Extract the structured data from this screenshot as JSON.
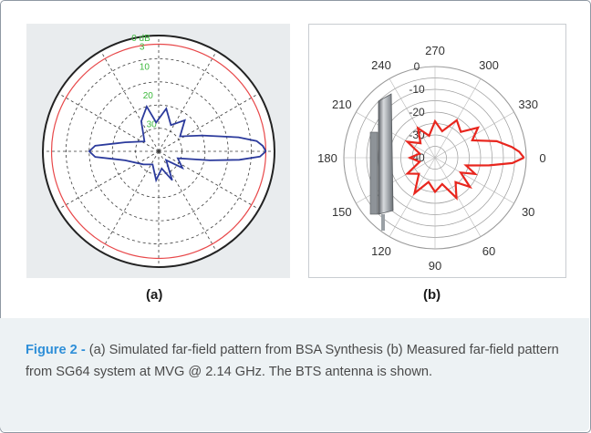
{
  "figure": {
    "label_a": "(a)",
    "label_b": "(b)",
    "caption_prefix": "Figure 2 -",
    "caption_text": " (a) Simulated far-field pattern from BSA Synthesis (b) Measured far-field pattern from SG64 system at MVG @ 2.14 GHz. The BTS antenna is shown."
  },
  "colors": {
    "sim_trace": "#2b3a9c",
    "sim_ref_circle": "#e8484a",
    "sim_db_labels": "#3cb83c",
    "meas_trace": "#e8261e"
  },
  "chart_data": [
    {
      "type": "polar",
      "panel": "(a)",
      "radial_labels": [
        "0 dB",
        "3",
        "10",
        "20",
        "30"
      ],
      "radial_scale_db": [
        0,
        -40
      ],
      "reference_circle_db": -3,
      "grid": true,
      "series": [
        {
          "points": [
            {
              "angle": 0,
              "db": -3
            },
            {
              "angle": 3,
              "db": -5
            },
            {
              "angle": 6,
              "db": -12
            },
            {
              "angle": 10,
              "db": -22
            },
            {
              "angle": 20,
              "db": -33
            },
            {
              "angle": 35,
              "db": -30
            },
            {
              "angle": 50,
              "db": -36
            },
            {
              "angle": 65,
              "db": -29
            },
            {
              "angle": 80,
              "db": -34
            },
            {
              "angle": 95,
              "db": -30
            },
            {
              "angle": 115,
              "db": -35
            },
            {
              "angle": 140,
              "db": -33
            },
            {
              "angle": 165,
              "db": -28
            },
            {
              "angle": 175,
              "db": -18
            },
            {
              "angle": 180,
              "db": -16
            },
            {
              "angle": 185,
              "db": -18
            },
            {
              "angle": 195,
              "db": -28
            },
            {
              "angle": 215,
              "db": -34
            },
            {
              "angle": 240,
              "db": -28
            },
            {
              "angle": 255,
              "db": -24
            },
            {
              "angle": 265,
              "db": -30
            },
            {
              "angle": 280,
              "db": -25
            },
            {
              "angle": 295,
              "db": -30
            },
            {
              "angle": 310,
              "db": -26
            },
            {
              "angle": 325,
              "db": -31
            },
            {
              "angle": 340,
              "db": -24
            },
            {
              "angle": 350,
              "db": -12
            },
            {
              "angle": 354,
              "db": -6
            },
            {
              "angle": 357,
              "db": -4
            },
            {
              "angle": 360,
              "db": -3
            }
          ]
        }
      ]
    },
    {
      "type": "polar",
      "panel": "(b)",
      "angle_labels": [
        "270",
        "300",
        "330",
        "0",
        "30",
        "60",
        "90",
        "120",
        "150",
        "180",
        "210",
        "240"
      ],
      "radial_labels": [
        "0",
        "-10",
        "-20",
        "-30",
        "-40"
      ],
      "radial_range": [
        -40,
        0
      ],
      "grid": true,
      "series": [
        {
          "points": [
            {
              "angle": 0,
              "db": -1
            },
            {
              "angle": 4,
              "db": -6
            },
            {
              "angle": 8,
              "db": -16
            },
            {
              "angle": 14,
              "db": -26
            },
            {
              "angle": 22,
              "db": -21
            },
            {
              "angle": 30,
              "db": -27
            },
            {
              "angle": 40,
              "db": -20
            },
            {
              "angle": 50,
              "db": -26
            },
            {
              "angle": 62,
              "db": -20
            },
            {
              "angle": 75,
              "db": -28
            },
            {
              "angle": 90,
              "db": -25
            },
            {
              "angle": 105,
              "db": -29
            },
            {
              "angle": 120,
              "db": -22
            },
            {
              "angle": 135,
              "db": -30
            },
            {
              "angle": 150,
              "db": -26
            },
            {
              "angle": 165,
              "db": -33
            },
            {
              "angle": 180,
              "db": -29
            },
            {
              "angle": 195,
              "db": -33
            },
            {
              "angle": 210,
              "db": -26
            },
            {
              "angle": 225,
              "db": -31
            },
            {
              "angle": 240,
              "db": -25
            },
            {
              "angle": 255,
              "db": -30
            },
            {
              "angle": 270,
              "db": -24
            },
            {
              "angle": 285,
              "db": -28
            },
            {
              "angle": 300,
              "db": -21
            },
            {
              "angle": 315,
              "db": -24
            },
            {
              "angle": 325,
              "db": -17
            },
            {
              "angle": 335,
              "db": -22
            },
            {
              "angle": 345,
              "db": -12
            },
            {
              "angle": 352,
              "db": -6
            },
            {
              "angle": 356,
              "db": -3
            },
            {
              "angle": 360,
              "db": -1
            }
          ]
        }
      ]
    }
  ]
}
